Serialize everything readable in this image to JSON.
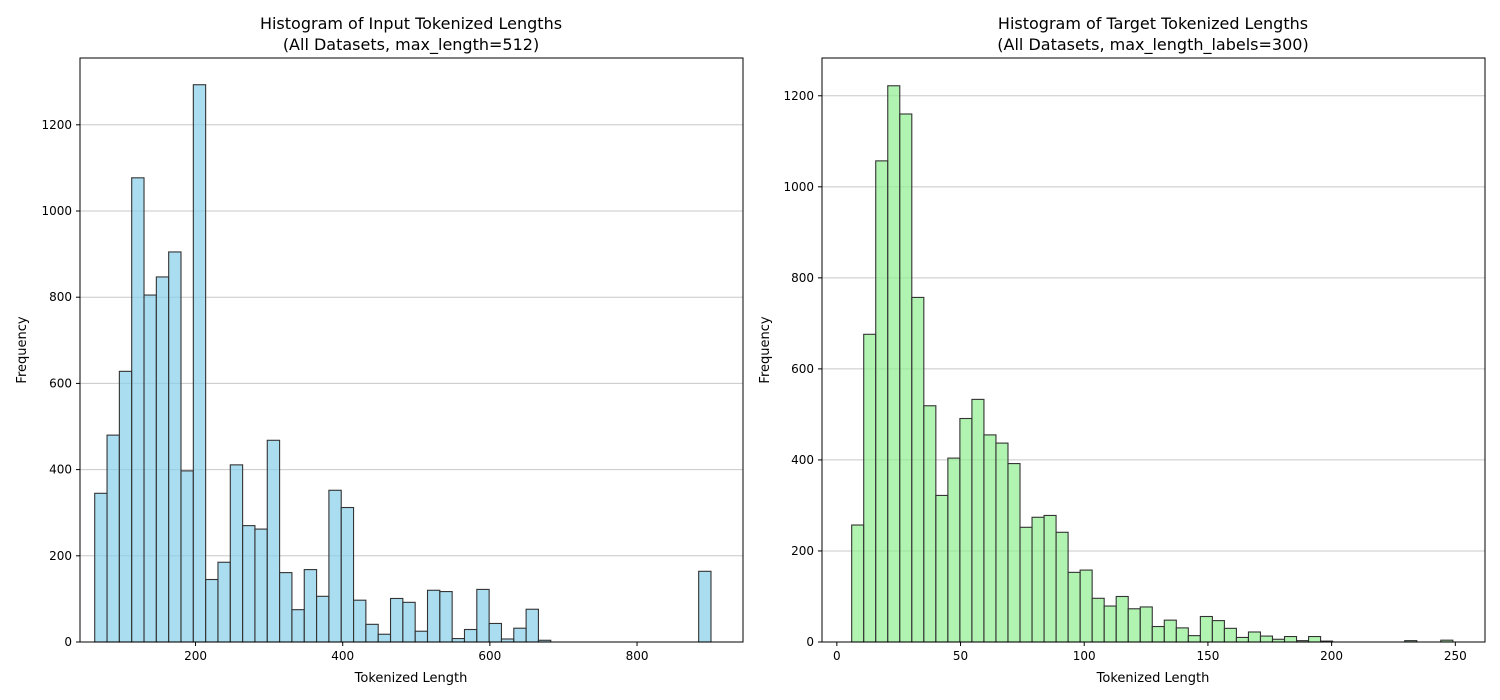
{
  "chart_data": [
    {
      "type": "bar",
      "title": "Histogram of Input Tokenized Lengths",
      "subtitle": "(All Datasets, max_length=512)",
      "xlabel": "Tokenized Length",
      "ylabel": "Frequency",
      "xlim": [
        43,
        944
      ],
      "ylim": [
        0,
        1355
      ],
      "xticks": [
        200,
        400,
        600,
        800
      ],
      "yticks": [
        0,
        200,
        400,
        600,
        800,
        1000,
        1200
      ],
      "grid": "y",
      "bar_color": "#87CEEB",
      "edge_color": "#333333",
      "bin_start": 63,
      "bin_width": 16.75,
      "values": [
        345,
        480,
        628,
        1077,
        805,
        847,
        905,
        397,
        1293,
        145,
        185,
        411,
        270,
        262,
        468,
        161,
        75,
        168,
        106,
        352,
        312,
        97,
        41,
        18,
        101,
        92,
        25,
        120,
        117,
        8,
        29,
        122,
        43,
        7,
        32,
        76,
        4,
        0,
        0,
        0,
        0,
        0,
        0,
        0,
        0,
        0,
        0,
        0,
        0,
        164
      ]
    },
    {
      "type": "bar",
      "title": "Histogram of Target Tokenized Lengths",
      "subtitle": "(All Datasets, max_length_labels=300)",
      "xlabel": "Tokenized Length",
      "ylabel": "Frequency",
      "xlim": [
        -6,
        262
      ],
      "ylim": [
        0,
        1283
      ],
      "xticks": [
        0,
        50,
        100,
        150,
        200,
        250
      ],
      "yticks": [
        0,
        200,
        400,
        600,
        800,
        1000,
        1200
      ],
      "grid": "y",
      "bar_color": "#90EE90",
      "edge_color": "#333333",
      "bin_start": 6,
      "bin_width": 4.86,
      "values": [
        257,
        676,
        1057,
        1222,
        1160,
        757,
        519,
        322,
        404,
        491,
        533,
        455,
        437,
        392,
        252,
        274,
        278,
        241,
        153,
        158,
        96,
        79,
        100,
        73,
        77,
        34,
        48,
        31,
        14,
        56,
        47,
        30,
        10,
        22,
        13,
        6,
        12,
        3,
        12,
        2,
        0,
        0,
        0,
        0,
        0,
        0,
        3,
        0,
        0,
        4
      ]
    }
  ]
}
